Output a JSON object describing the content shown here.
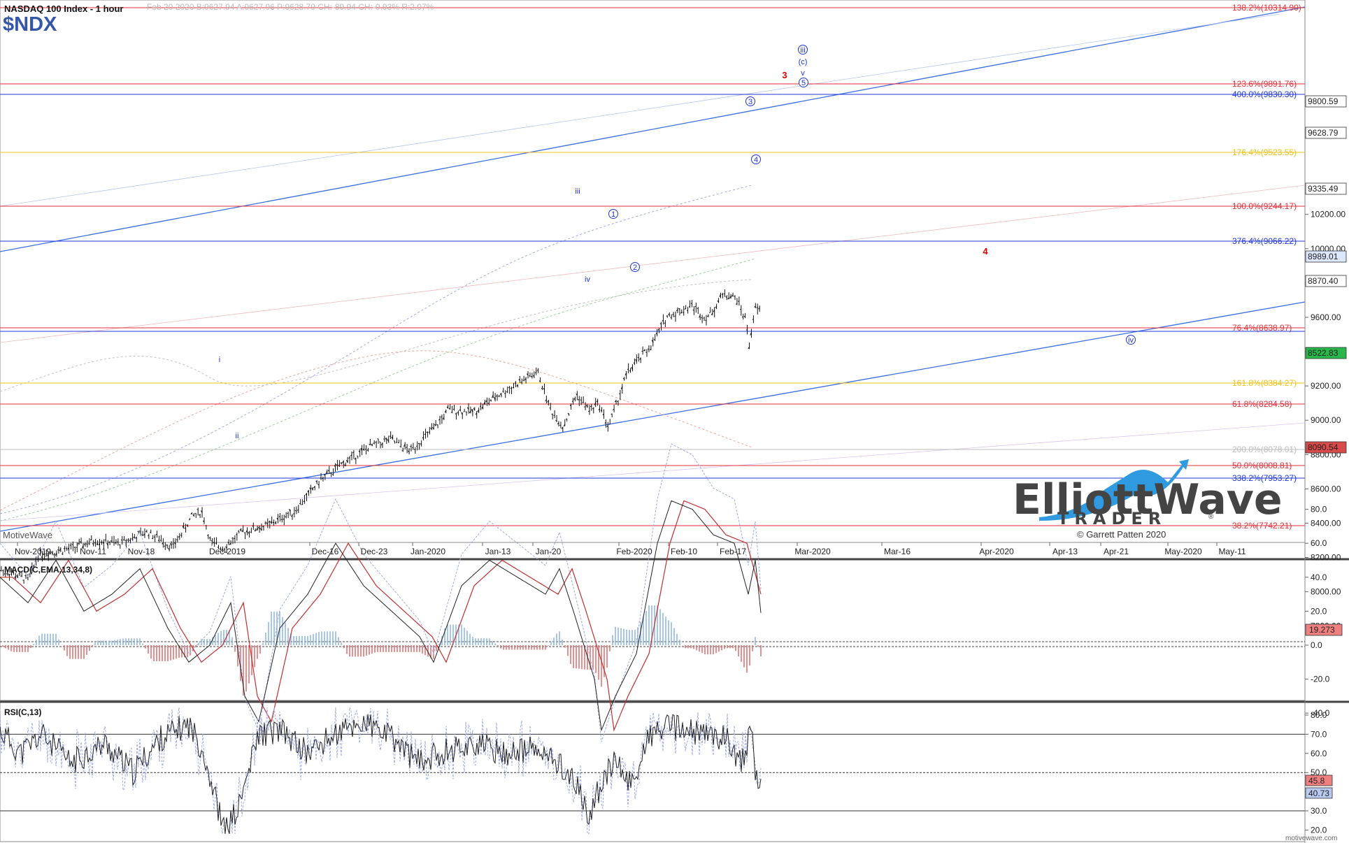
{
  "header": {
    "title": "NASDAQ 100 Index - 1 hour",
    "quote": "Feb 20 2020  B:9627.94  A:9627.96  P:9628.79  CH:-89.94  CH:-0.93%  R:2.07%",
    "symbol": "$NDX"
  },
  "watermark": "MotiveWave",
  "brand": {
    "line1": "ElliottWave",
    "line2": "TRADER",
    "reg": "®",
    "copyright": "© Garrett Patten 2020"
  },
  "footer": "motivewave.com",
  "price_axis": {
    "ticks": [
      "10200.00",
      "10000.00",
      "9800.00",
      "9600.00",
      "9400.00",
      "9200.00",
      "9000.00",
      "8800.00",
      "8600.00",
      "8400.00",
      "8200.00",
      "8000.00",
      "7800.00"
    ],
    "badges": [
      {
        "value": "9800.59",
        "color": "#ffffff"
      },
      {
        "value": "9628.79",
        "color": "#ffffff"
      },
      {
        "value": "9335.49",
        "color": "#ffffff"
      },
      {
        "value": "8989.01",
        "color": "#dde6ff"
      },
      {
        "value": "8870.40",
        "color": "#ffffff"
      },
      {
        "value": "8522.83",
        "color": "#29b64a"
      },
      {
        "value": "8090.54",
        "color": "#d94a4a"
      }
    ]
  },
  "fib_levels": [
    {
      "label": "138.2%(10314.90)",
      "color": "#e0313b"
    },
    {
      "label": "123.6%(9891.76)",
      "color": "#e0313b"
    },
    {
      "label": "400.0%(9830.30)",
      "color": "#1f36d8"
    },
    {
      "label": "176.4%(9523.55)",
      "color": "#e9c31a"
    },
    {
      "label": "100.0%(9244.17)",
      "color": "#e0313b"
    },
    {
      "label": "376.4%(9066.22)",
      "color": "#1f36d8"
    },
    {
      "label": "76.4%(8638.97)",
      "color": "#e0313b"
    },
    {
      "label": "161.8%(8384.27)",
      "color": "#e9c31a"
    },
    {
      "label": "61.8%(8284.58)",
      "color": "#e0313b"
    },
    {
      "label": "200.0%(8078.01)",
      "color": "#bbbbbb"
    },
    {
      "label": "50.0%(8008.81)",
      "color": "#e0313b"
    },
    {
      "label": "338.2%(7953.27)",
      "color": "#1f36d8"
    },
    {
      "label": "38.2%(7742.21)",
      "color": "#e0313b"
    }
  ],
  "time_axis": [
    "Nov-2019",
    "Nov-11",
    "Nov-18",
    "Dec-2019",
    "Dec-16",
    "Dec-23",
    "Jan-2020",
    "Jan-13",
    "Jan-20",
    "Feb-2020",
    "Feb-10",
    "Feb-17",
    "Mar-2020",
    "Mar-16",
    "Apr-2020",
    "Apr-13",
    "Apr-21",
    "May-2020",
    "May-11"
  ],
  "wave_labels": [
    {
      "text": "i",
      "color": "#1f36d8"
    },
    {
      "text": "ii",
      "color": "#1f36d8"
    },
    {
      "text": "iii",
      "color": "#1f36d8"
    },
    {
      "text": "iv",
      "color": "#1f36d8"
    },
    {
      "text": "1",
      "color": "#1f36d8"
    },
    {
      "text": "2",
      "color": "#1f36d8"
    },
    {
      "text": "3",
      "color": "#1f36d8"
    },
    {
      "text": "4",
      "color": "#1f36d8"
    },
    {
      "text": "5",
      "color": "#1f36d8"
    },
    {
      "text": "v",
      "color": "#1f36d8"
    },
    {
      "text": "(c)",
      "color": "#1f36d8"
    },
    {
      "text": "iii",
      "color": "#1f36d8"
    },
    {
      "text": "iv",
      "color": "#1f36d8"
    },
    {
      "text": "3",
      "color": "#e00000"
    },
    {
      "text": "4",
      "color": "#e00000"
    }
  ],
  "macd_panel": {
    "title": "MACD(C,EMA,13,34,8)",
    "ticks": [
      "80.0",
      "60.0",
      "40.0",
      "20.0",
      "0.0",
      "-20.0",
      "-40.0"
    ],
    "badge": "19.273"
  },
  "rsi_panel": {
    "title": "RSI(C,13)",
    "ticks": [
      "80.0",
      "70.0",
      "60.0",
      "50.0",
      "40.0",
      "30.0",
      "20.0"
    ],
    "badges": [
      "45.8",
      "40.73"
    ]
  },
  "chart_data": [
    {
      "type": "bar",
      "title": "NASDAQ 100 Index - 1 hour",
      "symbol": "$NDX",
      "x": [
        "Nov-2019",
        "Nov-11",
        "Nov-18",
        "Dec-2019",
        "Dec-16",
        "Dec-23",
        "Jan-2020",
        "Jan-13",
        "Jan-20",
        "Feb-2020",
        "Feb-10",
        "Feb-17",
        "Feb-20"
      ],
      "series": [
        {
          "name": "Close (approx.)",
          "values": [
            8100,
            8250,
            8320,
            8450,
            8550,
            8700,
            8850,
            9050,
            9200,
            9150,
            9500,
            9700,
            9628.79
          ]
        }
      ],
      "ylim": [
        7680,
        10340
      ],
      "xlim": [
        "Oct-28-2019",
        "May-2020"
      ]
    },
    {
      "type": "line",
      "title": "MACD(C,EMA,13,34,8)",
      "ylim": [
        -50,
        90
      ],
      "x": [
        "Nov-2019",
        "Nov-11",
        "Nov-18",
        "Dec-2019",
        "Dec-16",
        "Dec-23",
        "Jan-2020",
        "Jan-13",
        "Jan-20",
        "Feb-2020",
        "Feb-10",
        "Feb-17",
        "Feb-20"
      ],
      "series": [
        {
          "name": "MACD",
          "values": [
            35,
            20,
            40,
            -30,
            45,
            25,
            10,
            45,
            35,
            -35,
            85,
            65,
            19.273
          ]
        }
      ]
    },
    {
      "type": "line",
      "title": "RSI(C,13)",
      "ylim": [
        15,
        85
      ],
      "x": [
        "Nov-2019",
        "Nov-11",
        "Nov-18",
        "Dec-2019",
        "Dec-16",
        "Dec-23",
        "Jan-2020",
        "Jan-13",
        "Jan-20",
        "Feb-2020",
        "Feb-10",
        "Feb-17",
        "Feb-20"
      ],
      "series": [
        {
          "name": "RSI",
          "values": [
            70,
            65,
            68,
            30,
            75,
            70,
            55,
            68,
            62,
            25,
            78,
            72,
            40.73
          ]
        }
      ]
    }
  ]
}
